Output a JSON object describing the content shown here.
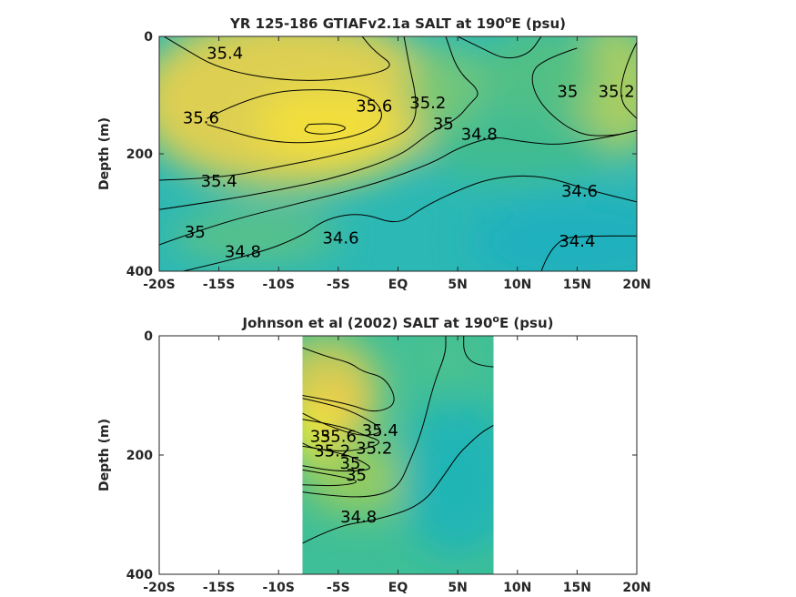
{
  "chart_data": [
    {
      "type": "contour",
      "title": "YR 125-186 GTIAFv2.1a SALT at 190°E (psu)",
      "xlabel": "",
      "ylabel": "Depth (m)",
      "x_ticks": [
        {
          "value": -20,
          "label": "-20S"
        },
        {
          "value": -15,
          "label": "-15S"
        },
        {
          "value": -10,
          "label": "-10S"
        },
        {
          "value": -5,
          "label": "-5S"
        },
        {
          "value": 0,
          "label": "EQ"
        },
        {
          "value": 5,
          "label": "5N"
        },
        {
          "value": 10,
          "label": "10N"
        },
        {
          "value": 15,
          "label": "15N"
        },
        {
          "value": 20,
          "label": "20N"
        }
      ],
      "y_ticks": [
        {
          "value": 0,
          "label": "0"
        },
        {
          "value": 200,
          "label": "200"
        },
        {
          "value": 400,
          "label": "400"
        }
      ],
      "xlim": [
        -20,
        20
      ],
      "ylim": [
        0,
        400
      ],
      "y_reversed": true,
      "data_xlim": [
        -20,
        20
      ],
      "contour_labels": [
        {
          "text": "35.4",
          "x": -14.5,
          "y": 30
        },
        {
          "text": "35.6",
          "x": -16.5,
          "y": 140
        },
        {
          "text": "35.6",
          "x": -2.0,
          "y": 120
        },
        {
          "text": "35.2",
          "x": 2.5,
          "y": 115
        },
        {
          "text": "35",
          "x": 3.8,
          "y": 150
        },
        {
          "text": "34.8",
          "x": 6.8,
          "y": 168
        },
        {
          "text": "35",
          "x": 14.2,
          "y": 95
        },
        {
          "text": "35.2",
          "x": 18.3,
          "y": 95
        },
        {
          "text": "35.4",
          "x": -15.0,
          "y": 248
        },
        {
          "text": "34.6",
          "x": 15.2,
          "y": 265
        },
        {
          "text": "35",
          "x": -17.0,
          "y": 335
        },
        {
          "text": "34.8",
          "x": -13.0,
          "y": 368
        },
        {
          "text": "34.6",
          "x": -4.8,
          "y": 345
        },
        {
          "text": "34.4",
          "x": 15.0,
          "y": 350
        }
      ]
    },
    {
      "type": "contour",
      "title": "Johnson et al (2002) SALT at 190°E (psu)",
      "xlabel": "",
      "ylabel": "Depth (m)",
      "x_ticks": [
        {
          "value": -20,
          "label": "-20S"
        },
        {
          "value": -15,
          "label": "-15S"
        },
        {
          "value": -10,
          "label": "-10S"
        },
        {
          "value": -5,
          "label": "-5S"
        },
        {
          "value": 0,
          "label": "EQ"
        },
        {
          "value": 5,
          "label": "5N"
        },
        {
          "value": 10,
          "label": "10N"
        },
        {
          "value": 15,
          "label": "15N"
        },
        {
          "value": 20,
          "label": "20N"
        }
      ],
      "y_ticks": [
        {
          "value": 0,
          "label": "0"
        },
        {
          "value": 200,
          "label": "200"
        },
        {
          "value": 400,
          "label": "400"
        }
      ],
      "xlim": [
        -20,
        20
      ],
      "ylim": [
        0,
        400
      ],
      "y_reversed": true,
      "data_xlim": [
        -8,
        8
      ],
      "contour_labels": [
        {
          "text": "35.4",
          "x": -1.5,
          "y": 160
        },
        {
          "text": "35.6",
          "x": -5.0,
          "y": 170
        },
        {
          "text": "35.2",
          "x": -2.0,
          "y": 190
        },
        {
          "text": "35",
          "x": -4.0,
          "y": 215
        },
        {
          "text": "35.2",
          "x": -5.5,
          "y": 195
        },
        {
          "text": "35",
          "x": -6.5,
          "y": 170
        },
        {
          "text": "35",
          "x": -3.5,
          "y": 235
        },
        {
          "text": "34.8",
          "x": -3.3,
          "y": 305
        }
      ]
    }
  ]
}
